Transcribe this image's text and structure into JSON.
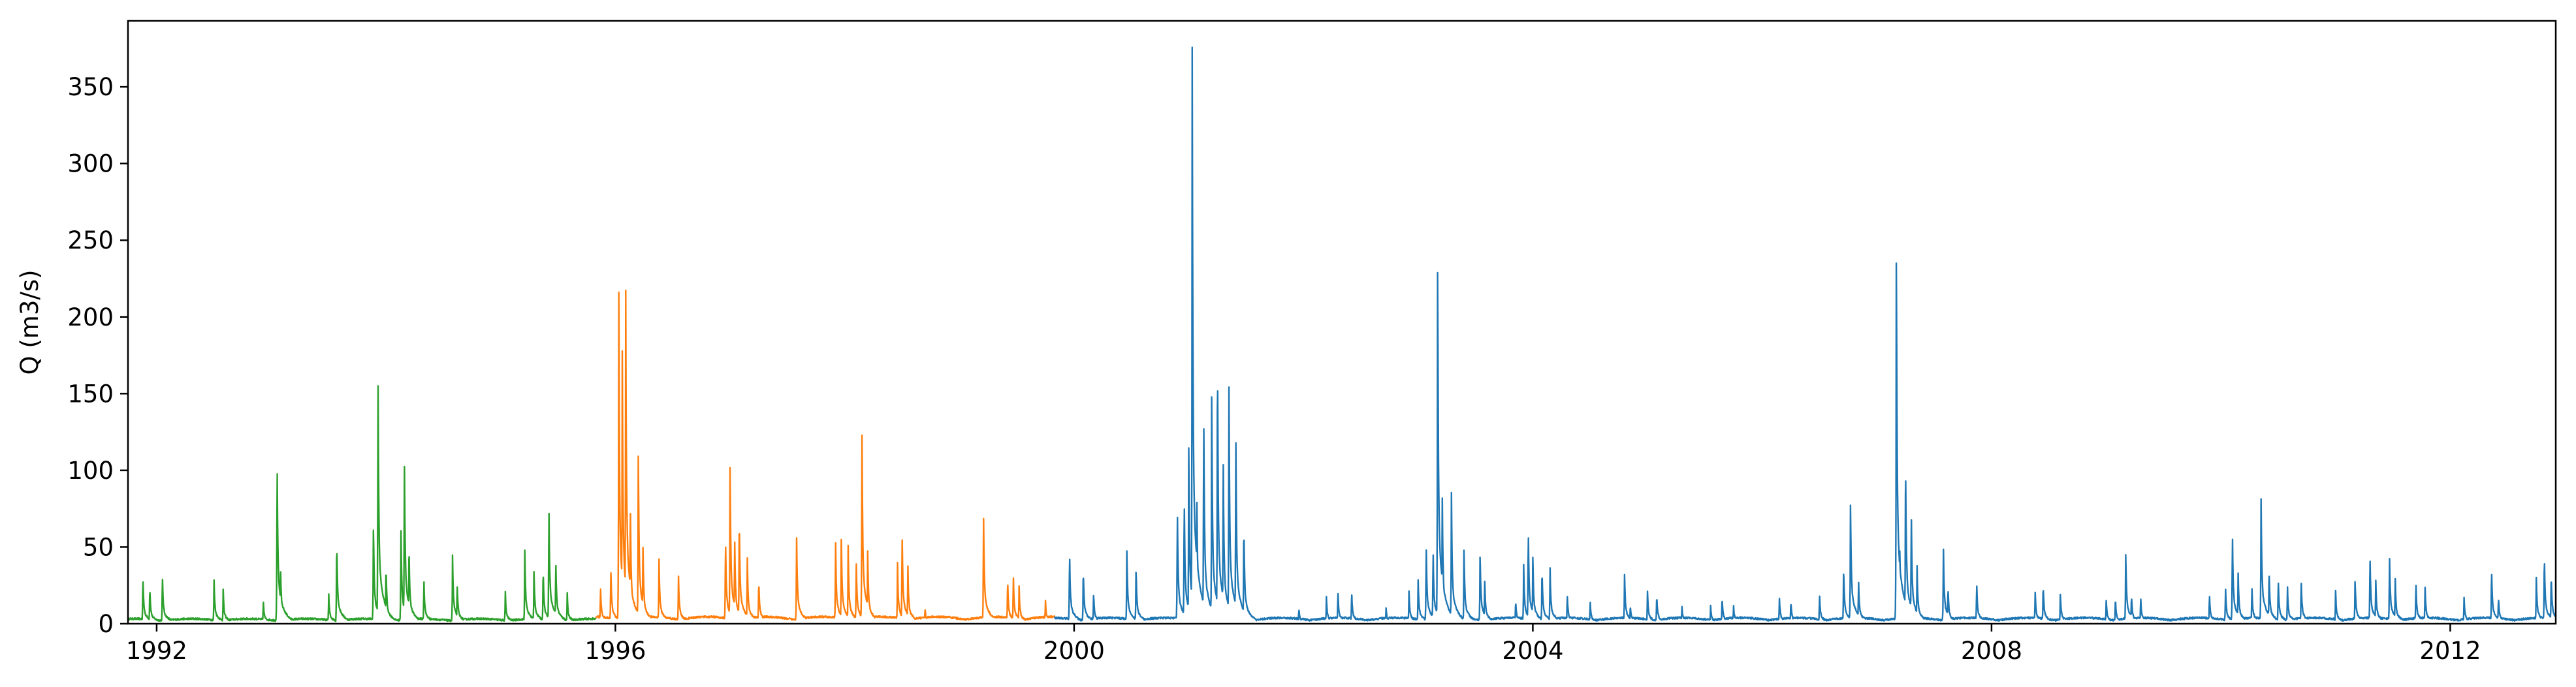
{
  "chart_data": {
    "type": "line",
    "title": "",
    "xlabel": "",
    "ylabel": "Q (m3/s)",
    "xlim": [
      1991.75,
      2012.92
    ],
    "ylim": [
      0,
      393
    ],
    "grid": false,
    "legend": "none",
    "x_ticks": [
      {
        "value": 1992,
        "label": "1992"
      },
      {
        "value": 1996,
        "label": "1996"
      },
      {
        "value": 2000,
        "label": "2000"
      },
      {
        "value": 2004,
        "label": "2004"
      },
      {
        "value": 2008,
        "label": "2008"
      },
      {
        "value": 2012,
        "label": "2012"
      }
    ],
    "y_ticks": [
      {
        "value": 0,
        "label": "0"
      },
      {
        "value": 50,
        "label": "50"
      },
      {
        "value": 100,
        "label": "100"
      },
      {
        "value": 150,
        "label": "150"
      },
      {
        "value": 200,
        "label": "200"
      },
      {
        "value": 250,
        "label": "250"
      },
      {
        "value": 300,
        "label": "300"
      },
      {
        "value": 350,
        "label": "350"
      }
    ],
    "series": [
      {
        "color": "#2ca02c",
        "baseline": 2,
        "range": [
          1991.75,
          1995.83
        ],
        "events": [
          {
            "x": 1991.88,
            "y": 32
          },
          {
            "x": 1991.94,
            "y": 25
          },
          {
            "x": 1992.05,
            "y": 33
          },
          {
            "x": 1992.5,
            "y": 30
          },
          {
            "x": 1992.58,
            "y": 22
          },
          {
            "x": 1992.93,
            "y": 15
          },
          {
            "x": 1993.05,
            "y": 115
          },
          {
            "x": 1993.08,
            "y": 40
          },
          {
            "x": 1993.5,
            "y": 20
          },
          {
            "x": 1993.57,
            "y": 58
          },
          {
            "x": 1993.89,
            "y": 68
          },
          {
            "x": 1993.93,
            "y": 172
          },
          {
            "x": 1994.0,
            "y": 40
          },
          {
            "x": 1994.13,
            "y": 67
          },
          {
            "x": 1994.16,
            "y": 115
          },
          {
            "x": 1994.2,
            "y": 55
          },
          {
            "x": 1994.33,
            "y": 30
          },
          {
            "x": 1994.58,
            "y": 45
          },
          {
            "x": 1994.62,
            "y": 28
          },
          {
            "x": 1995.04,
            "y": 21
          },
          {
            "x": 1995.21,
            "y": 49
          },
          {
            "x": 1995.29,
            "y": 37
          },
          {
            "x": 1995.37,
            "y": 38
          },
          {
            "x": 1995.42,
            "y": 84
          },
          {
            "x": 1995.48,
            "y": 45
          },
          {
            "x": 1995.58,
            "y": 20
          }
        ]
      },
      {
        "color": "#ff7f0e",
        "baseline": 3,
        "range": [
          1995.83,
          1999.83
        ],
        "events": [
          {
            "x": 1995.87,
            "y": 25
          },
          {
            "x": 1995.96,
            "y": 40
          },
          {
            "x": 1996.03,
            "y": 215
          },
          {
            "x": 1996.06,
            "y": 180
          },
          {
            "x": 1996.09,
            "y": 225
          },
          {
            "x": 1996.13,
            "y": 85
          },
          {
            "x": 1996.2,
            "y": 115
          },
          {
            "x": 1996.24,
            "y": 55
          },
          {
            "x": 1996.38,
            "y": 45
          },
          {
            "x": 1996.55,
            "y": 32
          },
          {
            "x": 1996.96,
            "y": 60
          },
          {
            "x": 1997.0,
            "y": 107
          },
          {
            "x": 1997.04,
            "y": 60
          },
          {
            "x": 1997.08,
            "y": 75
          },
          {
            "x": 1997.15,
            "y": 45
          },
          {
            "x": 1997.25,
            "y": 30
          },
          {
            "x": 1997.58,
            "y": 60
          },
          {
            "x": 1997.92,
            "y": 55
          },
          {
            "x": 1997.97,
            "y": 60
          },
          {
            "x": 1998.03,
            "y": 50
          },
          {
            "x": 1998.1,
            "y": 45
          },
          {
            "x": 1998.15,
            "y": 131
          },
          {
            "x": 1998.2,
            "y": 50
          },
          {
            "x": 1998.46,
            "y": 40
          },
          {
            "x": 1998.5,
            "y": 63
          },
          {
            "x": 1998.55,
            "y": 40
          },
          {
            "x": 1998.7,
            "y": 10
          },
          {
            "x": 1999.21,
            "y": 75
          },
          {
            "x": 1999.42,
            "y": 30
          },
          {
            "x": 1999.47,
            "y": 33
          },
          {
            "x": 1999.52,
            "y": 25
          },
          {
            "x": 1999.75,
            "y": 15
          }
        ]
      },
      {
        "color": "#1f77b4",
        "baseline": 2.5,
        "range": [
          1999.83,
          2012.92
        ],
        "events": [
          {
            "x": 1999.96,
            "y": 50
          },
          {
            "x": 2000.08,
            "y": 38
          },
          {
            "x": 2000.17,
            "y": 20
          },
          {
            "x": 2000.46,
            "y": 48
          },
          {
            "x": 2000.54,
            "y": 38
          },
          {
            "x": 2000.9,
            "y": 80
          },
          {
            "x": 2000.96,
            "y": 90
          },
          {
            "x": 2001.0,
            "y": 120
          },
          {
            "x": 2001.03,
            "y": 375
          },
          {
            "x": 2001.07,
            "y": 90
          },
          {
            "x": 2001.13,
            "y": 150
          },
          {
            "x": 2001.2,
            "y": 155
          },
          {
            "x": 2001.25,
            "y": 192
          },
          {
            "x": 2001.3,
            "y": 120
          },
          {
            "x": 2001.35,
            "y": 165
          },
          {
            "x": 2001.41,
            "y": 130
          },
          {
            "x": 2001.48,
            "y": 70
          },
          {
            "x": 2001.96,
            "y": 10
          },
          {
            "x": 2002.2,
            "y": 18
          },
          {
            "x": 2002.3,
            "y": 22
          },
          {
            "x": 2002.42,
            "y": 22
          },
          {
            "x": 2002.72,
            "y": 10
          },
          {
            "x": 2002.92,
            "y": 22
          },
          {
            "x": 2003.0,
            "y": 30
          },
          {
            "x": 2003.07,
            "y": 55
          },
          {
            "x": 2003.13,
            "y": 52
          },
          {
            "x": 2003.17,
            "y": 255
          },
          {
            "x": 2003.21,
            "y": 90
          },
          {
            "x": 2003.29,
            "y": 88
          },
          {
            "x": 2003.4,
            "y": 50
          },
          {
            "x": 2003.54,
            "y": 50
          },
          {
            "x": 2003.58,
            "y": 30
          },
          {
            "x": 2003.85,
            "y": 15
          },
          {
            "x": 2003.92,
            "y": 40
          },
          {
            "x": 2003.96,
            "y": 67
          },
          {
            "x": 2004.0,
            "y": 45
          },
          {
            "x": 2004.08,
            "y": 38
          },
          {
            "x": 2004.15,
            "y": 38
          },
          {
            "x": 2004.3,
            "y": 20
          },
          {
            "x": 2004.5,
            "y": 15
          },
          {
            "x": 2004.8,
            "y": 33
          },
          {
            "x": 2004.85,
            "y": 12
          },
          {
            "x": 2005.0,
            "y": 22
          },
          {
            "x": 2005.08,
            "y": 20
          },
          {
            "x": 2005.3,
            "y": 12
          },
          {
            "x": 2005.55,
            "y": 12
          },
          {
            "x": 2005.65,
            "y": 18
          },
          {
            "x": 2005.75,
            "y": 12
          },
          {
            "x": 2006.15,
            "y": 17
          },
          {
            "x": 2006.25,
            "y": 15
          },
          {
            "x": 2006.5,
            "y": 20
          },
          {
            "x": 2006.71,
            "y": 40
          },
          {
            "x": 2006.77,
            "y": 85
          },
          {
            "x": 2006.84,
            "y": 30
          },
          {
            "x": 2007.17,
            "y": 261
          },
          {
            "x": 2007.2,
            "y": 50
          },
          {
            "x": 2007.25,
            "y": 117
          },
          {
            "x": 2007.3,
            "y": 78
          },
          {
            "x": 2007.35,
            "y": 40
          },
          {
            "x": 2007.58,
            "y": 52
          },
          {
            "x": 2007.62,
            "y": 25
          },
          {
            "x": 2007.87,
            "y": 28
          },
          {
            "x": 2008.38,
            "y": 22
          },
          {
            "x": 2008.45,
            "y": 27
          },
          {
            "x": 2008.6,
            "y": 20
          },
          {
            "x": 2009.0,
            "y": 15
          },
          {
            "x": 2009.08,
            "y": 17
          },
          {
            "x": 2009.17,
            "y": 50
          },
          {
            "x": 2009.22,
            "y": 20
          },
          {
            "x": 2009.3,
            "y": 18
          },
          {
            "x": 2009.9,
            "y": 20
          },
          {
            "x": 2010.04,
            "y": 25
          },
          {
            "x": 2010.1,
            "y": 64
          },
          {
            "x": 2010.15,
            "y": 35
          },
          {
            "x": 2010.27,
            "y": 25
          },
          {
            "x": 2010.35,
            "y": 87
          },
          {
            "x": 2010.42,
            "y": 38
          },
          {
            "x": 2010.5,
            "y": 30
          },
          {
            "x": 2010.58,
            "y": 25
          },
          {
            "x": 2010.7,
            "y": 30
          },
          {
            "x": 2011.0,
            "y": 22
          },
          {
            "x": 2011.17,
            "y": 30
          },
          {
            "x": 2011.3,
            "y": 47
          },
          {
            "x": 2011.35,
            "y": 30
          },
          {
            "x": 2011.47,
            "y": 48
          },
          {
            "x": 2011.52,
            "y": 30
          },
          {
            "x": 2011.7,
            "y": 28
          },
          {
            "x": 2011.78,
            "y": 25
          },
          {
            "x": 2012.12,
            "y": 17
          },
          {
            "x": 2012.36,
            "y": 38
          },
          {
            "x": 2012.42,
            "y": 18
          },
          {
            "x": 2012.75,
            "y": 32
          },
          {
            "x": 2012.82,
            "y": 48
          },
          {
            "x": 2012.88,
            "y": 35
          }
        ]
      }
    ]
  }
}
